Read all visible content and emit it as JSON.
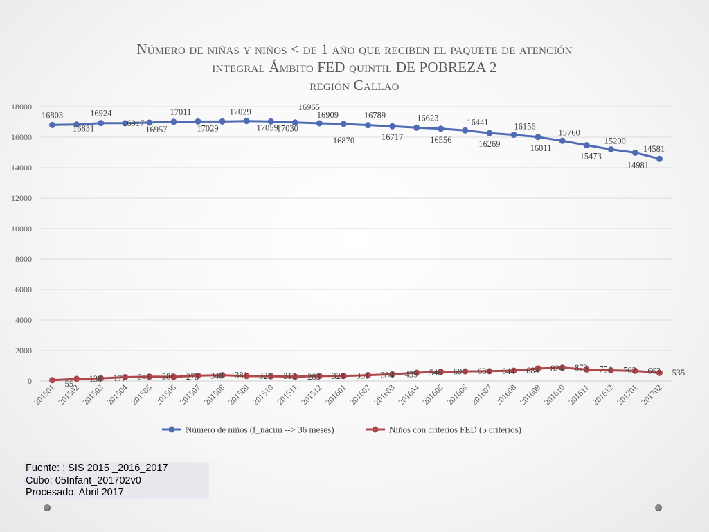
{
  "slide": {
    "title_line1": "Número de niñas y niños < de 1 año que reciben el paquete de atención",
    "title_line2": "integral Ámbito FED quintil DE POBREZA 2",
    "title_line3": "región Callao"
  },
  "source_box": {
    "line1": "Fuente: : SIS 2015 _2016_2017",
    "line2": "Cubo:  05Infant_201702v0",
    "line3": "Procesado: Abril 2017"
  },
  "chart_data": {
    "type": "line",
    "title": "Número de niñas y niños < de 1 año que reciben el paquete de atención integral Ámbito FED quintil DE POBREZA 2 región Callao",
    "xlabel": "",
    "ylabel": "",
    "ylim": [
      0,
      18000
    ],
    "yticks": [
      0,
      2000,
      4000,
      6000,
      8000,
      10000,
      12000,
      14000,
      16000,
      18000
    ],
    "grid": true,
    "legend_position": "bottom",
    "categories": [
      "201501",
      "201502",
      "201503",
      "201504",
      "201505",
      "201506",
      "201507",
      "201508",
      "201509",
      "201510",
      "201511",
      "201512",
      "201601",
      "201602",
      "201603",
      "201604",
      "201605",
      "201606",
      "201607",
      "201608",
      "201609",
      "201610",
      "201611",
      "201612",
      "201701",
      "201702"
    ],
    "series": [
      {
        "name": "Número de niños (f_nacim --> 36 meses)",
        "color": "#4f6bb3",
        "values": [
          16803,
          16831,
          16924,
          16917,
          16957,
          17011,
          17029,
          17029,
          17059,
          17030,
          16965,
          16909,
          16870,
          16789,
          16717,
          16623,
          16556,
          16441,
          16269,
          16156,
          16011,
          15760,
          15473,
          15200,
          14981,
          14581
        ]
      },
      {
        "name": "Niños con criterios FED (5 criterios)",
        "color": "#b0474b",
        "values": [
          55,
          138,
          177,
          248,
          286,
          273,
          348,
          381,
          325,
          312,
          283,
          328,
          331,
          384,
          439,
          546,
          604,
          634,
          644,
          684,
          824,
          873,
          754,
          702,
          663,
          535
        ]
      }
    ]
  }
}
